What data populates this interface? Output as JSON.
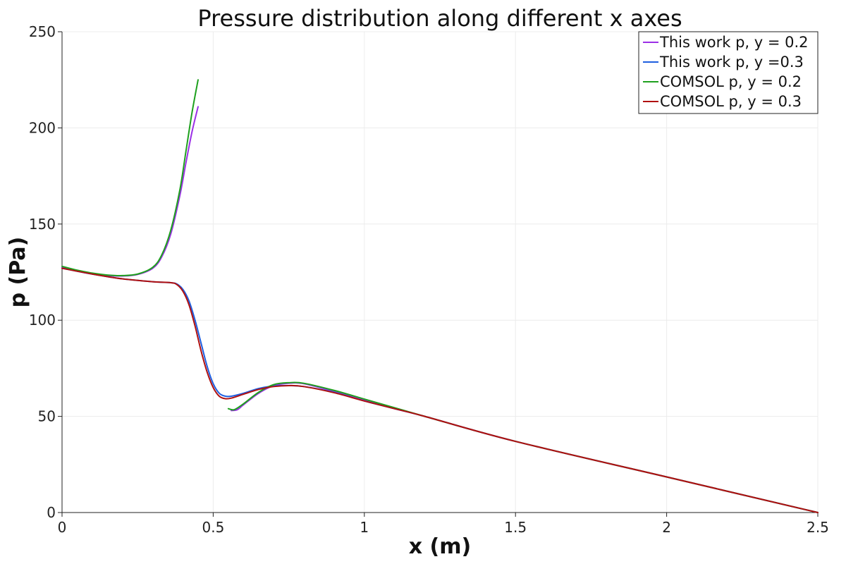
{
  "chart_data": {
    "type": "line",
    "title": "Pressure distribution along different x axes",
    "xlabel": "x (m)",
    "ylabel": "p (Pa)",
    "xlim": [
      0,
      2.5
    ],
    "ylim": [
      0,
      250
    ],
    "x_ticks": [
      0,
      0.5,
      1,
      1.5,
      2,
      2.5
    ],
    "x_tick_labels": [
      "0",
      "0.5",
      "1",
      "1.5",
      "2",
      "2.5"
    ],
    "y_ticks": [
      0,
      50,
      100,
      150,
      200,
      250
    ],
    "y_tick_labels": [
      "0",
      "50",
      "100",
      "150",
      "200",
      "250"
    ],
    "grid": true,
    "legend_position": "top-right",
    "series": [
      {
        "name": "This work p, y = 0.2",
        "color": "#9b30e6",
        "segments": [
          {
            "x": [
              0,
              0.05,
              0.1,
              0.15,
              0.2,
              0.25,
              0.3,
              0.33,
              0.36,
              0.39,
              0.41,
              0.43,
              0.45
            ],
            "y": [
              127.5,
              125.5,
              124,
              123.2,
              123,
              123.8,
              127,
              133,
              145,
              165,
              182,
              198,
              211
            ]
          },
          {
            "x": [
              0.56,
              0.58,
              0.6,
              0.65,
              0.7,
              0.75,
              0.8,
              0.9,
              1.0,
              1.1,
              1.2,
              1.5,
              2.0,
              2.5
            ],
            "y": [
              53,
              53.5,
              56,
              62,
              66,
              67.2,
              67,
              63,
              58.5,
              54,
              50,
              37,
              18.5,
              0
            ]
          }
        ]
      },
      {
        "name": "This work p, y =0.3",
        "color": "#1f5fe0",
        "segments": [
          {
            "x": [
              0,
              0.1,
              0.2,
              0.3,
              0.36,
              0.38,
              0.4,
              0.42,
              0.44,
              0.46,
              0.48,
              0.5,
              0.52,
              0.54,
              0.56,
              0.6,
              0.65,
              0.7,
              0.75,
              0.8,
              0.9,
              1.0,
              1.1,
              1.2,
              1.5,
              2.0,
              2.5
            ],
            "y": [
              127,
              124,
              121.5,
              120,
              119.5,
              118.8,
              116,
              110,
              100,
              88,
              76,
              67,
              62,
              60.5,
              60.5,
              62,
              64.5,
              65.8,
              66,
              65.5,
              62.5,
              58,
              54,
              50,
              37,
              18.5,
              0
            ]
          }
        ]
      },
      {
        "name": "COMSOL p, y = 0.2",
        "color": "#1ea01e",
        "segments": [
          {
            "x": [
              0,
              0.05,
              0.1,
              0.15,
              0.2,
              0.25,
              0.3,
              0.33,
              0.36,
              0.39,
              0.41,
              0.43,
              0.45
            ],
            "y": [
              128,
              126,
              124.5,
              123.5,
              123.2,
              124,
              127.5,
              134,
              147,
              168,
              188,
              208,
              225
            ]
          },
          {
            "x": [
              0.55,
              0.57,
              0.6,
              0.65,
              0.7,
              0.75,
              0.8,
              0.9,
              1.0,
              1.1,
              1.2,
              1.5,
              2.0,
              2.5
            ],
            "y": [
              54,
              53.5,
              56.5,
              62.5,
              66.5,
              67.5,
              67.2,
              63.5,
              59,
              54.5,
              50,
              37,
              18.5,
              0
            ]
          }
        ]
      },
      {
        "name": "COMSOL p, y = 0.3",
        "color": "#b01010",
        "segments": [
          {
            "x": [
              0,
              0.1,
              0.2,
              0.3,
              0.36,
              0.38,
              0.4,
              0.42,
              0.44,
              0.46,
              0.48,
              0.5,
              0.52,
              0.54,
              0.56,
              0.6,
              0.65,
              0.7,
              0.75,
              0.8,
              0.9,
              1.0,
              1.1,
              1.2,
              1.5,
              2.0,
              2.5
            ],
            "y": [
              127,
              124,
              121.5,
              120,
              119.5,
              118.5,
              115,
              108,
              97,
              84,
              73,
              65,
              60.5,
              59.2,
              59.5,
              61.5,
              64,
              65.5,
              66,
              65.5,
              62.3,
              58,
              54,
              50,
              37,
              18.5,
              0
            ]
          }
        ]
      }
    ]
  }
}
